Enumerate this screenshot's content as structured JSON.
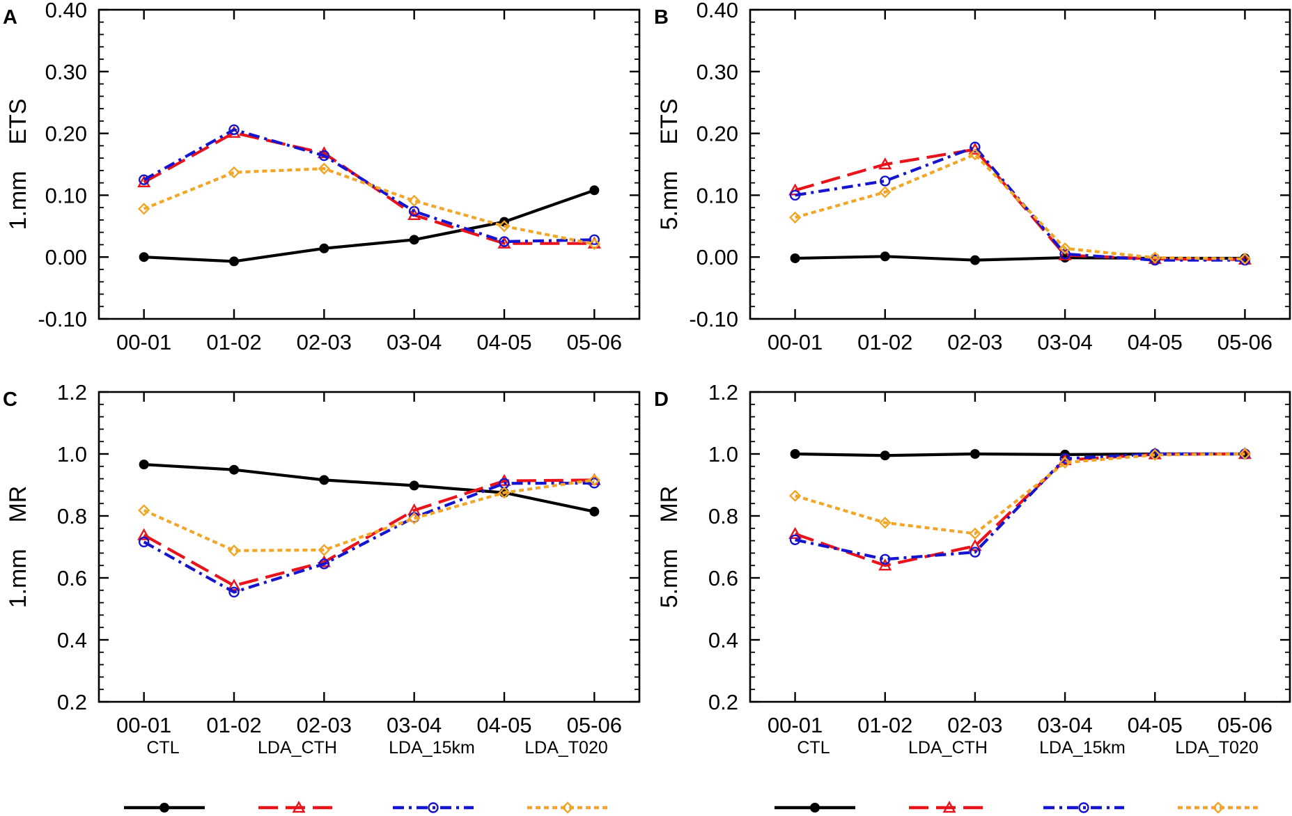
{
  "chart_data": [
    {
      "panel": "A",
      "type": "line",
      "ylabel": "1.mm    ETS",
      "categories": [
        "00-01",
        "01-02",
        "02-03",
        "03-04",
        "04-05",
        "05-06"
      ],
      "ylim": [
        -0.1,
        0.4
      ],
      "yticks": [
        "-0.10",
        "0.00",
        "0.10",
        "0.20",
        "0.30",
        "0.40"
      ],
      "ytick_values": [
        -0.1,
        0.0,
        0.1,
        0.2,
        0.3,
        0.4
      ],
      "series": [
        {
          "name": "CTL",
          "values": [
            0.0,
            -0.007,
            0.014,
            0.028,
            0.057,
            0.108
          ]
        },
        {
          "name": "LDA_CTH",
          "values": [
            0.121,
            0.201,
            0.168,
            0.068,
            0.022,
            0.022
          ]
        },
        {
          "name": "LDA_15km",
          "values": [
            0.125,
            0.206,
            0.164,
            0.074,
            0.025,
            0.028
          ]
        },
        {
          "name": "LDA_T020",
          "values": [
            0.078,
            0.137,
            0.143,
            0.091,
            0.05,
            0.021
          ]
        }
      ]
    },
    {
      "panel": "B",
      "type": "line",
      "ylabel": "5.mm    ETS",
      "categories": [
        "00-01",
        "01-02",
        "02-03",
        "03-04",
        "04-05",
        "05-06"
      ],
      "ylim": [
        -0.1,
        0.4
      ],
      "yticks": [
        "-0.10",
        "0.00",
        "0.10",
        "0.20",
        "0.30",
        "0.40"
      ],
      "ytick_values": [
        -0.1,
        0.0,
        0.1,
        0.2,
        0.3,
        0.4
      ],
      "series": [
        {
          "name": "CTL",
          "values": [
            -0.002,
            0.001,
            -0.005,
            -0.001,
            -0.002,
            -0.002
          ]
        },
        {
          "name": "LDA_CTH",
          "values": [
            0.108,
            0.15,
            0.174,
            0.003,
            -0.003,
            -0.004
          ]
        },
        {
          "name": "LDA_15km",
          "values": [
            0.1,
            0.123,
            0.178,
            0.005,
            -0.005,
            -0.005
          ]
        },
        {
          "name": "LDA_T020",
          "values": [
            0.064,
            0.105,
            0.166,
            0.014,
            -0.001,
            -0.003
          ]
        }
      ]
    },
    {
      "panel": "C",
      "type": "line",
      "ylabel": "1.mm    MR",
      "categories": [
        "00-01",
        "01-02",
        "02-03",
        "03-04",
        "04-05",
        "05-06"
      ],
      "ylim": [
        0.2,
        1.2
      ],
      "yticks": [
        "0.2",
        "0.4",
        "0.6",
        "0.8",
        "1.0",
        "1.2"
      ],
      "ytick_values": [
        0.2,
        0.4,
        0.6,
        0.8,
        1.0,
        1.2
      ],
      "series": [
        {
          "name": "CTL",
          "values": [
            0.966,
            0.949,
            0.916,
            0.898,
            0.875,
            0.814
          ]
        },
        {
          "name": "LDA_CTH",
          "values": [
            0.738,
            0.575,
            0.651,
            0.818,
            0.913,
            0.916
          ]
        },
        {
          "name": "LDA_15km",
          "values": [
            0.716,
            0.554,
            0.645,
            0.795,
            0.905,
            0.906
          ]
        },
        {
          "name": "LDA_T020",
          "values": [
            0.818,
            0.688,
            0.69,
            0.792,
            0.875,
            0.916
          ]
        }
      ]
    },
    {
      "panel": "D",
      "type": "line",
      "ylabel": "5.mm    MR",
      "categories": [
        "00-01",
        "01-02",
        "02-03",
        "03-04",
        "04-05",
        "05-06"
      ],
      "ylim": [
        0.2,
        1.2
      ],
      "yticks": [
        "0.2",
        "0.4",
        "0.6",
        "0.8",
        "1.0",
        "1.2"
      ],
      "ytick_values": [
        0.2,
        0.4,
        0.6,
        0.8,
        1.0,
        1.2
      ],
      "series": [
        {
          "name": "CTL",
          "values": [
            1.0,
            0.995,
            1.0,
            0.998,
            1.0,
            1.0
          ]
        },
        {
          "name": "LDA_CTH",
          "values": [
            0.742,
            0.64,
            0.703,
            0.98,
            0.999,
            1.0
          ]
        },
        {
          "name": "LDA_15km",
          "values": [
            0.723,
            0.66,
            0.683,
            0.985,
            1.0,
            1.0
          ]
        },
        {
          "name": "LDA_T020",
          "values": [
            0.865,
            0.778,
            0.743,
            0.972,
            0.997,
            1.0
          ]
        }
      ]
    }
  ],
  "legend": {
    "entries": [
      {
        "name": "CTL",
        "color": "#000000",
        "dash": "solid",
        "marker": "filled-circle"
      },
      {
        "name": "LDA_CTH",
        "color": "#e8131b",
        "dash": "long-dash-dot",
        "marker": "open-triangle"
      },
      {
        "name": "LDA_15km",
        "color": "#1515d0",
        "dash": "dash-dot",
        "marker": "open-circle"
      },
      {
        "name": "LDA_T020",
        "color": "#f2a628",
        "dash": "dotted",
        "marker": "open-diamond"
      }
    ]
  }
}
